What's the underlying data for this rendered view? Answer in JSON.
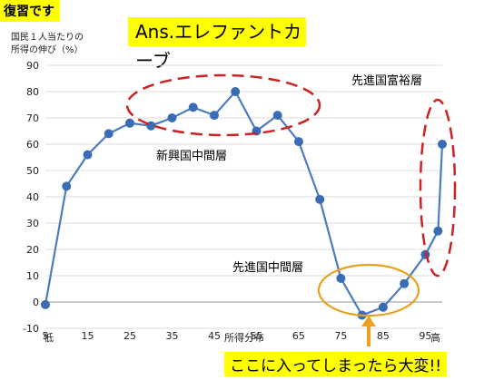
{
  "review_tag": "復習です",
  "answer_title": "Ans.エレファントカーブ",
  "callout": "ここに入ってしまったら大変!!",
  "chart_data": {
    "type": "line",
    "ylabel_line1": "国民１人当たりの",
    "ylabel_line2": "所得の伸び（%）",
    "xlabel": "所得分布",
    "x_low_label": "低",
    "x_high_label": "高",
    "ylim": [
      -10,
      90
    ],
    "xlim": [
      5,
      99
    ],
    "yticks": [
      -10,
      0,
      10,
      20,
      30,
      40,
      50,
      60,
      70,
      80,
      90
    ],
    "xticks": [
      5,
      15,
      25,
      35,
      45,
      55,
      65,
      75,
      85,
      95
    ],
    "grid": true,
    "line_color": "#4a7cc0",
    "point_color": "#3a6bb5",
    "points": [
      {
        "x": 5,
        "y": -1
      },
      {
        "x": 10,
        "y": 44
      },
      {
        "x": 15,
        "y": 56
      },
      {
        "x": 20,
        "y": 64
      },
      {
        "x": 25,
        "y": 68
      },
      {
        "x": 30,
        "y": 67
      },
      {
        "x": 35,
        "y": 70
      },
      {
        "x": 40,
        "y": 74
      },
      {
        "x": 45,
        "y": 71
      },
      {
        "x": 50,
        "y": 80
      },
      {
        "x": 55,
        "y": 65
      },
      {
        "x": 60,
        "y": 71
      },
      {
        "x": 65,
        "y": 61
      },
      {
        "x": 70,
        "y": 39
      },
      {
        "x": 75,
        "y": 9
      },
      {
        "x": 80,
        "y": -5
      },
      {
        "x": 85,
        "y": -2
      },
      {
        "x": 90,
        "y": 7
      },
      {
        "x": 95,
        "y": 18
      },
      {
        "x": 98,
        "y": 27
      },
      {
        "x": 99,
        "y": 60
      }
    ],
    "annotations": [
      {
        "text": "先進国富裕層",
        "color": "#000000"
      },
      {
        "text": "新興国中間層",
        "color": "#000000"
      },
      {
        "text": "先進国中間層",
        "color": "#000000"
      }
    ],
    "highlight_colors": {
      "red": "#cc2222",
      "orange": "#e8a020"
    }
  }
}
